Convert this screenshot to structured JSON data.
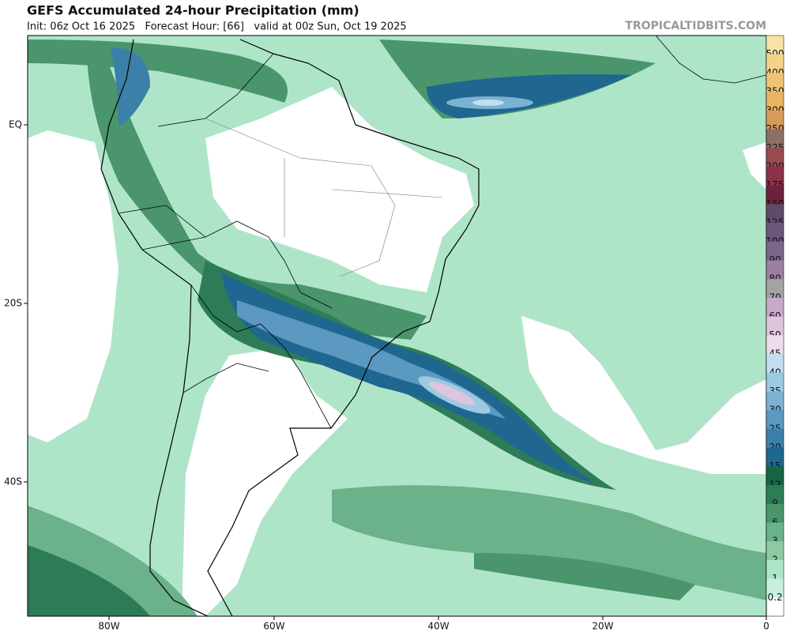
{
  "header": {
    "title": "GEFS Accumulated 24-hour Precipitation (mm)",
    "subtitle": "Init: 06z Oct 16 2025   Forecast Hour: [66]   valid at 00z Sun, Oct 19 2025",
    "site": "TROPICALTIDBITS.COM"
  },
  "map": {
    "lat_labels": [
      "EQ",
      "20S",
      "40S"
    ],
    "lon_labels": [
      "80W",
      "60W",
      "40W",
      "20W",
      "0"
    ]
  },
  "colorbar": {
    "levels": [
      {
        "label": "500",
        "color": "#f7e3a6"
      },
      {
        "label": "400",
        "color": "#f3d38a"
      },
      {
        "label": "350",
        "color": "#efc474"
      },
      {
        "label": "300",
        "color": "#e9b564"
      },
      {
        "label": "250",
        "color": "#d49b5c"
      },
      {
        "label": "225",
        "color": "#8b7066"
      },
      {
        "label": "200",
        "color": "#9b4a52"
      },
      {
        "label": "175",
        "color": "#8a3247"
      },
      {
        "label": "150",
        "color": "#6f213d"
      },
      {
        "label": "125",
        "color": "#5f4a6b"
      },
      {
        "label": "100",
        "color": "#6c5679"
      },
      {
        "label": "90",
        "color": "#7c6689"
      },
      {
        "label": "80",
        "color": "#9a80a2"
      },
      {
        "label": "70",
        "color": "#a3a3a3"
      },
      {
        "label": "60",
        "color": "#c7a9c8"
      },
      {
        "label": "50",
        "color": "#dcc5dd"
      },
      {
        "label": "45",
        "color": "#ecdcec"
      },
      {
        "label": "40",
        "color": "#c2def0"
      },
      {
        "label": "35",
        "color": "#9ccae2"
      },
      {
        "label": "30",
        "color": "#7bb2d2"
      },
      {
        "label": "25",
        "color": "#5b99c1"
      },
      {
        "label": "20",
        "color": "#3b80a8"
      },
      {
        "label": "15",
        "color": "#1f6690"
      },
      {
        "label": "12",
        "color": "#176447"
      },
      {
        "label": "9",
        "color": "#2d7c57"
      },
      {
        "label": "6",
        "color": "#4a956b"
      },
      {
        "label": "3",
        "color": "#6bb189"
      },
      {
        "label": "2",
        "color": "#8dcaa3"
      },
      {
        "label": "1",
        "color": "#aee5c9"
      },
      {
        "label": "0.2",
        "color": "#c6f0dc"
      }
    ]
  }
}
